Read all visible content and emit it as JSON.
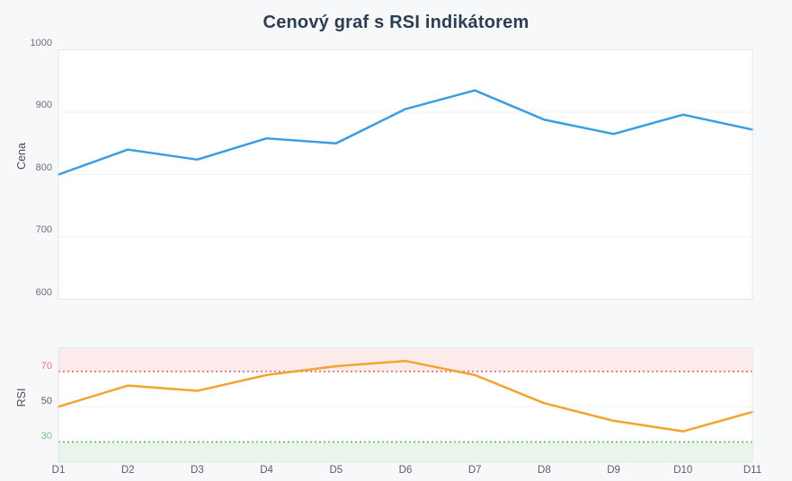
{
  "title": "Cenový graf s RSI indikátorem",
  "colors": {
    "background": "#f7f8fa",
    "panel_background": "#ffffff",
    "panel_border": "#e3e6ea",
    "gridline": "#eef0f3",
    "title_text": "#2c3e50",
    "axis_title_text": "#494e55",
    "tick_text": "#6b7077",
    "x_tick_text": "#595e65"
  },
  "chart_data": [
    {
      "type": "line",
      "panel": "price",
      "ylabel": "Cena",
      "categories": [
        "D1",
        "D2",
        "D3",
        "D4",
        "D5",
        "D6",
        "D7",
        "D8",
        "D9",
        "D10",
        "D11"
      ],
      "series": [
        {
          "name": "Cena",
          "values": [
            800,
            840,
            824,
            858,
            850,
            905,
            935,
            888,
            865,
            896,
            872
          ],
          "color": "#3a9ce1"
        }
      ],
      "ylim": [
        600,
        1000
      ],
      "yticks": [
        1000,
        900,
        800,
        700,
        600
      ],
      "grid": true,
      "legend": "none",
      "x_axis_labels_visible": false
    },
    {
      "type": "line",
      "panel": "rsi",
      "ylabel": "RSI",
      "categories": [
        "D1",
        "D2",
        "D3",
        "D4",
        "D5",
        "D6",
        "D7",
        "D8",
        "D9",
        "D10",
        "D11"
      ],
      "series": [
        {
          "name": "RSI",
          "values": [
            50,
            62,
            59,
            68,
            73,
            76,
            68,
            52,
            42,
            36,
            47
          ],
          "color": "#f2a330"
        }
      ],
      "ylim": [
        18.5,
        83.5
      ],
      "yticks": [
        {
          "value": 70,
          "label": "70",
          "color": "#e57373"
        },
        {
          "value": 50,
          "label": "50",
          "color": "#585d64"
        },
        {
          "value": 30,
          "label": "30",
          "color": "#74c083"
        }
      ],
      "grid_value": 50,
      "annotations": {
        "overbought": {
          "value": 70,
          "line_color": "#e06767",
          "line_style": "dotted",
          "band_from": 70,
          "band_to": 83.5,
          "band_color": "#fcebeb"
        },
        "oversold": {
          "value": 30,
          "line_color": "#5cb377",
          "line_style": "dotted",
          "band_from": 18.5,
          "band_to": 30,
          "band_color": "#e9f4eb"
        }
      },
      "legend": "none",
      "x_axis_labels_visible": true
    }
  ]
}
